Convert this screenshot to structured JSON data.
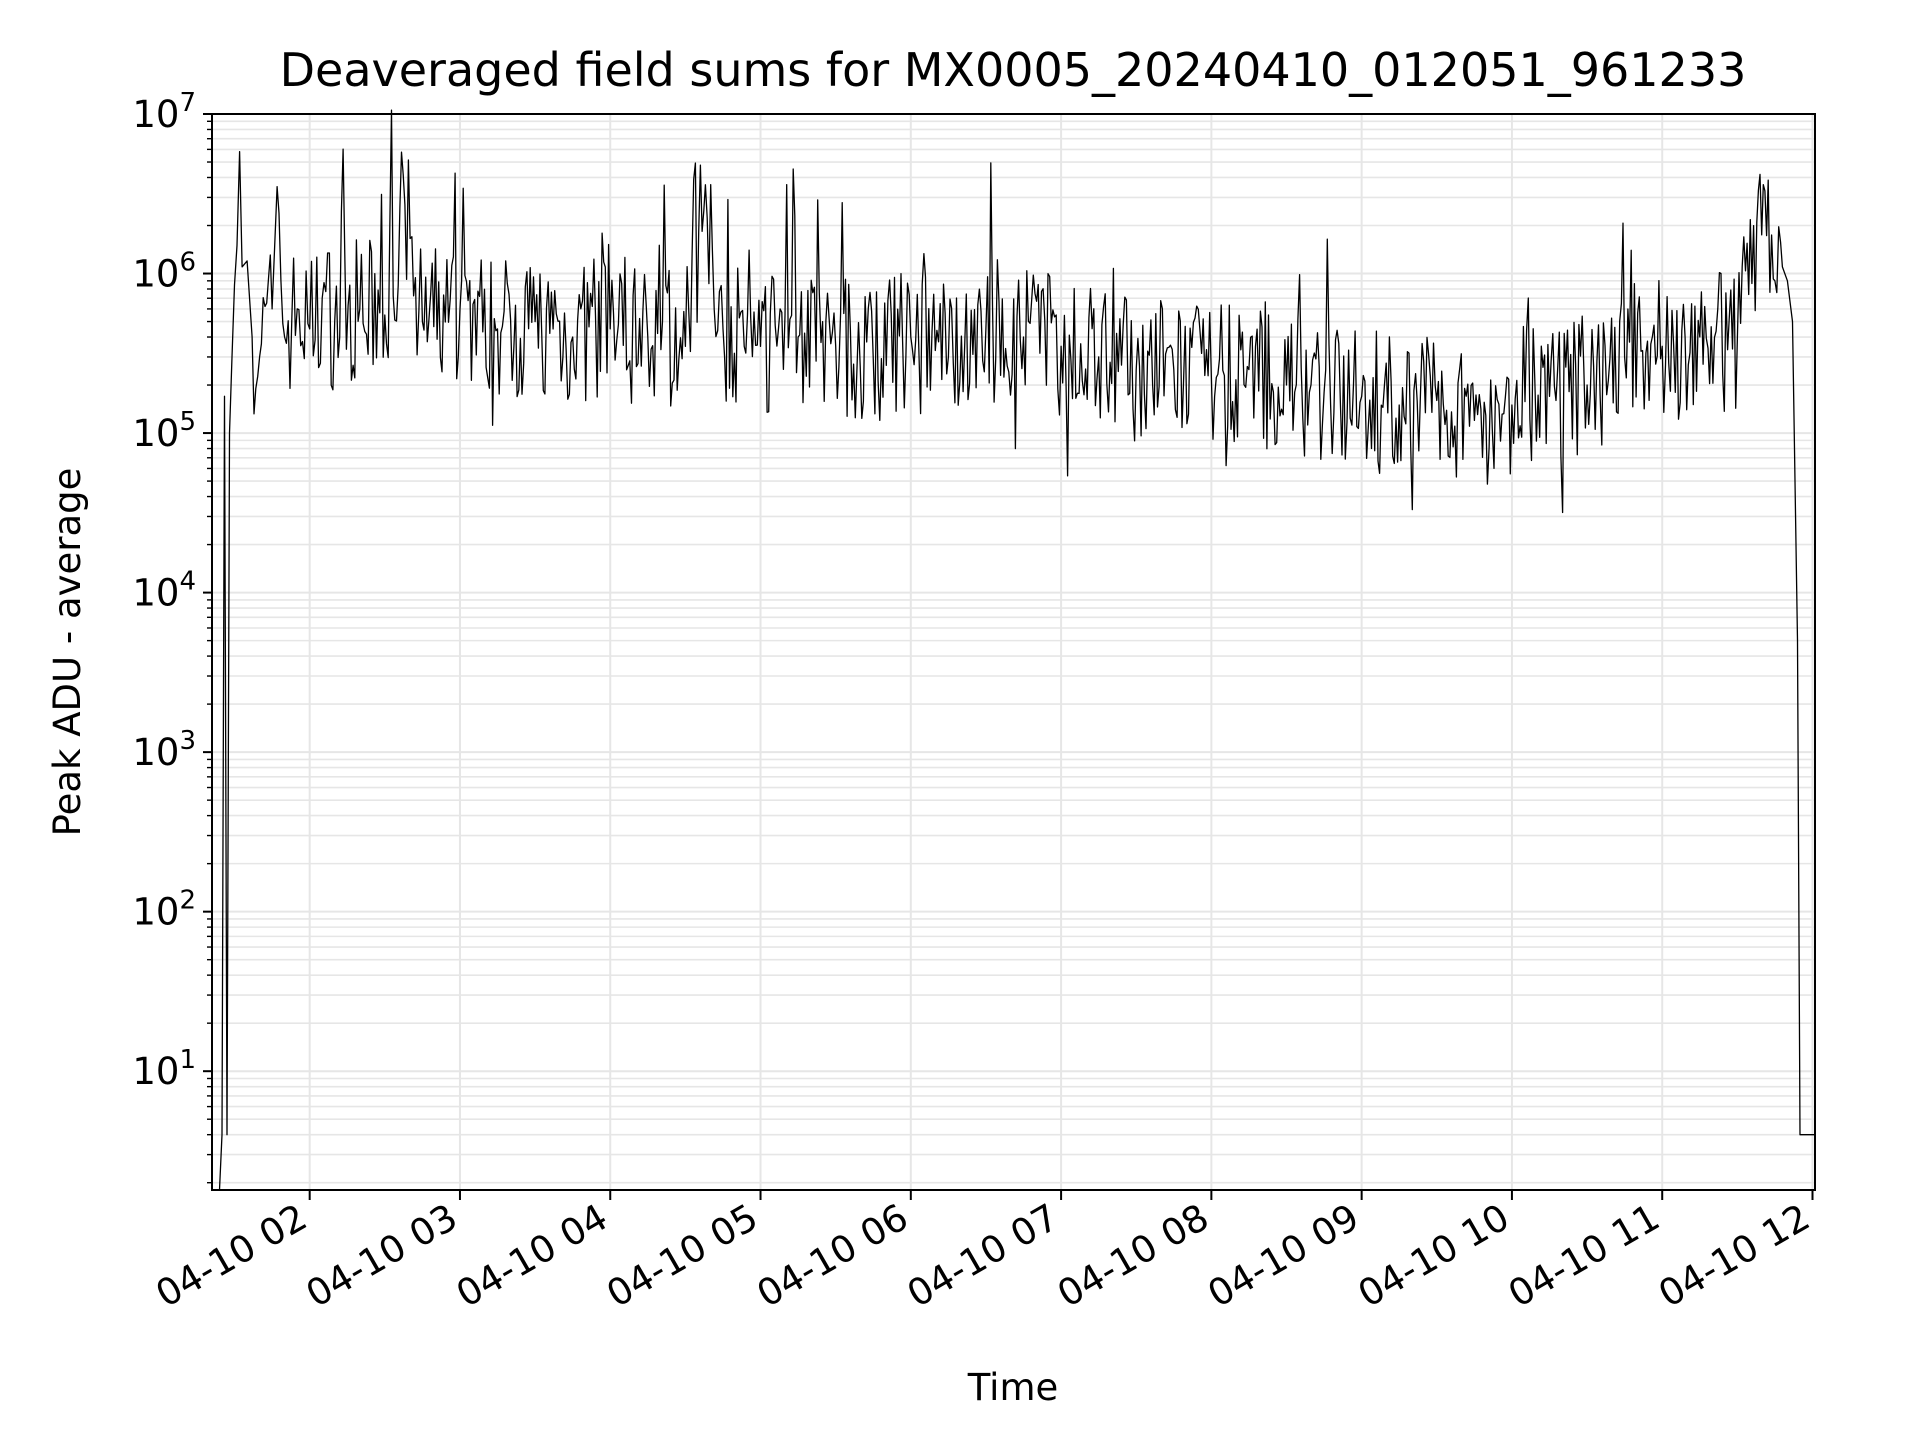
{
  "chart_data": {
    "type": "line",
    "title": "Deaveraged field sums for MX0005_20240410_012051_961233",
    "xlabel": "Time",
    "ylabel": "Peak ADU - average",
    "yscale": "log",
    "ylim": [
      1.8,
      10000000
    ],
    "xlim": [
      "2024-04-10 01:21",
      "2024-04-10 12:01"
    ],
    "grid": true,
    "line_color": "#000000",
    "x_ticks": [
      {
        "label": "04-10 02",
        "value": "2024-04-10 02:00"
      },
      {
        "label": "04-10 03",
        "value": "2024-04-10 03:00"
      },
      {
        "label": "04-10 04",
        "value": "2024-04-10 04:00"
      },
      {
        "label": "04-10 05",
        "value": "2024-04-10 05:00"
      },
      {
        "label": "04-10 06",
        "value": "2024-04-10 06:00"
      },
      {
        "label": "04-10 07",
        "value": "2024-04-10 07:00"
      },
      {
        "label": "04-10 08",
        "value": "2024-04-10 08:00"
      },
      {
        "label": "04-10 09",
        "value": "2024-04-10 09:00"
      },
      {
        "label": "04-10 10",
        "value": "2024-04-10 10:00"
      },
      {
        "label": "04-10 11",
        "value": "2024-04-10 11:00"
      },
      {
        "label": "04-10 12",
        "value": "2024-04-10 12:00"
      }
    ],
    "y_ticks": [
      {
        "base": "10",
        "exp": "1",
        "value": 10
      },
      {
        "base": "10",
        "exp": "2",
        "value": 100
      },
      {
        "base": "10",
        "exp": "3",
        "value": 1000
      },
      {
        "base": "10",
        "exp": "4",
        "value": 10000
      },
      {
        "base": "10",
        "exp": "5",
        "value": 100000
      },
      {
        "base": "10",
        "exp": "6",
        "value": 1000000
      },
      {
        "base": "10",
        "exp": "7",
        "value": 10000000
      }
    ],
    "series": [
      {
        "points": [
          [
            "2024-04-10 01:24",
            1.8
          ],
          [
            "2024-04-10 01:25",
            4
          ],
          [
            "2024-04-10 01:26",
            170000
          ],
          [
            "2024-04-10 01:27",
            4
          ],
          [
            "2024-04-10 01:28",
            100000
          ],
          [
            "2024-04-10 01:29",
            300000
          ],
          [
            "2024-04-10 01:30",
            850000
          ],
          [
            "2024-04-10 01:31",
            1500000
          ],
          [
            "2024-04-10 01:32",
            5800000
          ],
          [
            "2024-04-10 01:33",
            1100000
          ],
          [
            "2024-04-10 01:35",
            1200000
          ],
          [
            "2024-04-10 01:37",
            400000
          ],
          [
            "2024-04-10 01:40",
            300000
          ],
          [
            "2024-04-10 01:45",
            600000
          ],
          [
            "2024-04-10 01:47",
            3500000
          ],
          [
            "2024-04-10 01:50",
            400000
          ],
          [
            "2024-04-10 01:55",
            600000
          ],
          [
            "2024-04-10 02:00",
            450000
          ],
          [
            "2024-04-10 02:05",
            700000
          ],
          [
            "2024-04-10 02:10",
            500000
          ],
          [
            "2024-04-10 02:20",
            600000
          ],
          [
            "2024-04-10 02:30",
            550000
          ],
          [
            "2024-04-10 02:38",
            2700000
          ],
          [
            "2024-04-10 02:45",
            500000
          ],
          [
            "2024-04-10 03:00",
            600000
          ],
          [
            "2024-04-10 03:15",
            450000
          ],
          [
            "2024-04-10 03:30",
            500000
          ],
          [
            "2024-04-10 03:45",
            400000
          ],
          [
            "2024-04-10 04:00",
            450000
          ],
          [
            "2024-04-10 04:15",
            400000
          ],
          [
            "2024-04-10 04:30",
            350000
          ],
          [
            "2024-04-10 04:38",
            3600000
          ],
          [
            "2024-04-10 04:45",
            450000
          ],
          [
            "2024-04-10 05:00",
            350000
          ],
          [
            "2024-04-10 05:15",
            400000
          ],
          [
            "2024-04-10 05:30",
            350000
          ],
          [
            "2024-04-10 05:45",
            300000
          ],
          [
            "2024-04-10 06:00",
            400000
          ],
          [
            "2024-04-10 06:15",
            300000
          ],
          [
            "2024-04-10 06:30",
            450000
          ],
          [
            "2024-04-10 06:45",
            400000
          ],
          [
            "2024-04-10 07:00",
            350000
          ],
          [
            "2024-04-10 07:15",
            300000
          ],
          [
            "2024-04-10 07:30",
            250000
          ],
          [
            "2024-04-10 07:45",
            250000
          ],
          [
            "2024-04-10 08:00",
            220000
          ],
          [
            "2024-04-10 08:15",
            250000
          ],
          [
            "2024-04-10 08:30",
            200000
          ],
          [
            "2024-04-10 08:45",
            180000
          ],
          [
            "2024-04-10 09:00",
            170000
          ],
          [
            "2024-04-10 09:15",
            150000
          ],
          [
            "2024-04-10 09:30",
            160000
          ],
          [
            "2024-04-10 09:45",
            120000
          ],
          [
            "2024-04-10 10:00",
            150000
          ],
          [
            "2024-04-10 10:15",
            170000
          ],
          [
            "2024-04-10 10:30",
            200000
          ],
          [
            "2024-04-10 10:45",
            300000
          ],
          [
            "2024-04-10 11:00",
            350000
          ],
          [
            "2024-04-10 11:15",
            400000
          ],
          [
            "2024-04-10 11:30",
            400000
          ],
          [
            "2024-04-10 11:41",
            3300000
          ],
          [
            "2024-04-10 11:45",
            900000
          ],
          [
            "2024-04-10 11:48",
            1100000
          ],
          [
            "2024-04-10 11:50",
            900000
          ],
          [
            "2024-04-10 11:52",
            500000
          ],
          [
            "2024-04-10 11:54",
            5000
          ],
          [
            "2024-04-10 11:55",
            4
          ],
          [
            "2024-04-10 12:01",
            4
          ]
        ]
      }
    ]
  }
}
